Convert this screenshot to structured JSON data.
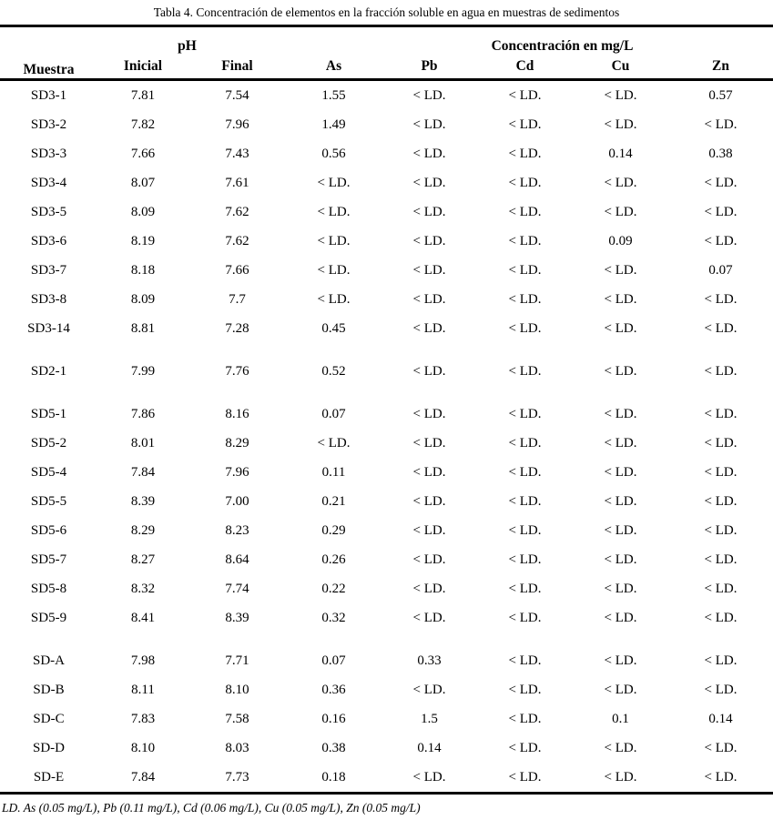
{
  "caption": "Tabla 4. Concentración de elementos en la fracción soluble en agua en muestras de sedimentos",
  "headers": {
    "muestra": "Muestra",
    "ph_group": "pH",
    "conc_group": "Concentración en mg/L",
    "sub": [
      "Inicial",
      "Final",
      "As",
      "Pb",
      "Cd",
      "Cu",
      "Zn"
    ]
  },
  "groups": [
    {
      "rows": [
        {
          "muestra": "SD3-1",
          "values": [
            "7.81",
            "7.54",
            "1.55",
            "< LD.",
            "< LD.",
            "< LD.",
            "0.57"
          ]
        },
        {
          "muestra": "SD3-2",
          "values": [
            "7.82",
            "7.96",
            "1.49",
            "< LD.",
            "< LD.",
            "< LD.",
            "< LD."
          ]
        },
        {
          "muestra": "SD3-3",
          "values": [
            "7.66",
            "7.43",
            "0.56",
            "< LD.",
            "< LD.",
            "0.14",
            "0.38"
          ]
        },
        {
          "muestra": "SD3-4",
          "values": [
            "8.07",
            "7.61",
            "< LD.",
            "< LD.",
            "< LD.",
            "< LD.",
            "< LD."
          ]
        },
        {
          "muestra": "SD3-5",
          "values": [
            "8.09",
            "7.62",
            "< LD.",
            "< LD.",
            "< LD.",
            "< LD.",
            "< LD."
          ]
        },
        {
          "muestra": "SD3-6",
          "values": [
            "8.19",
            "7.62",
            "< LD.",
            "< LD.",
            "< LD.",
            "0.09",
            "< LD."
          ]
        },
        {
          "muestra": "SD3-7",
          "values": [
            "8.18",
            "7.66",
            "< LD.",
            "< LD.",
            "< LD.",
            "< LD.",
            "0.07"
          ]
        },
        {
          "muestra": "SD3-8",
          "values": [
            "8.09",
            "7.7",
            "< LD.",
            "< LD.",
            "< LD.",
            "< LD.",
            "< LD."
          ]
        },
        {
          "muestra": "SD3-14",
          "values": [
            "8.81",
            "7.28",
            "0.45",
            "< LD.",
            "< LD.",
            "< LD.",
            "< LD."
          ]
        }
      ]
    },
    {
      "rows": [
        {
          "muestra": "SD2-1",
          "values": [
            "7.99",
            "7.76",
            "0.52",
            "< LD.",
            "< LD.",
            "< LD.",
            "< LD."
          ]
        }
      ]
    },
    {
      "rows": [
        {
          "muestra": "SD5-1",
          "values": [
            "7.86",
            "8.16",
            "0.07",
            "< LD.",
            "< LD.",
            "< LD.",
            "< LD."
          ]
        },
        {
          "muestra": "SD5-2",
          "values": [
            "8.01",
            "8.29",
            "< LD.",
            "< LD.",
            "< LD.",
            "< LD.",
            "< LD."
          ]
        },
        {
          "muestra": "SD5-4",
          "values": [
            "7.84",
            "7.96",
            "0.11",
            "< LD.",
            "< LD.",
            "< LD.",
            "< LD."
          ]
        },
        {
          "muestra": "SD5-5",
          "values": [
            "8.39",
            "7.00",
            "0.21",
            "< LD.",
            "< LD.",
            "< LD.",
            "< LD."
          ]
        },
        {
          "muestra": "SD5-6",
          "values": [
            "8.29",
            "8.23",
            "0.29",
            "< LD.",
            "< LD.",
            "< LD.",
            "< LD."
          ]
        },
        {
          "muestra": "SD5-7",
          "values": [
            "8.27",
            "8.64",
            "0.26",
            "< LD.",
            "< LD.",
            "< LD.",
            "< LD."
          ]
        },
        {
          "muestra": "SD5-8",
          "values": [
            "8.32",
            "7.74",
            "0.22",
            "< LD.",
            "< LD.",
            "< LD.",
            "< LD."
          ]
        },
        {
          "muestra": "SD5-9",
          "values": [
            "8.41",
            "8.39",
            "0.32",
            "< LD.",
            "< LD.",
            "< LD.",
            "< LD."
          ]
        }
      ]
    },
    {
      "rows": [
        {
          "muestra": "SD-A",
          "values": [
            "7.98",
            "7.71",
            "0.07",
            "0.33",
            "< LD.",
            "< LD.",
            "< LD."
          ]
        },
        {
          "muestra": "SD-B",
          "values": [
            "8.11",
            "8.10",
            "0.36",
            "< LD.",
            "< LD.",
            "< LD.",
            "< LD."
          ]
        },
        {
          "muestra": "SD-C",
          "values": [
            "7.83",
            "7.58",
            "0.16",
            "1.5",
            "< LD.",
            "0.1",
            "0.14"
          ]
        },
        {
          "muestra": "SD-D",
          "values": [
            "8.10",
            "8.03",
            "0.38",
            "0.14",
            "< LD.",
            "< LD.",
            "< LD."
          ]
        },
        {
          "muestra": "SD-E",
          "values": [
            "7.84",
            "7.73",
            "0.18",
            "< LD.",
            "< LD.",
            "< LD.",
            "< LD."
          ]
        }
      ]
    }
  ],
  "footnote": "LD. As (0.05 mg/L), Pb (0.11 mg/L), Cd (0.06 mg/L), Cu (0.05 mg/L), Zn (0.05 mg/L)"
}
